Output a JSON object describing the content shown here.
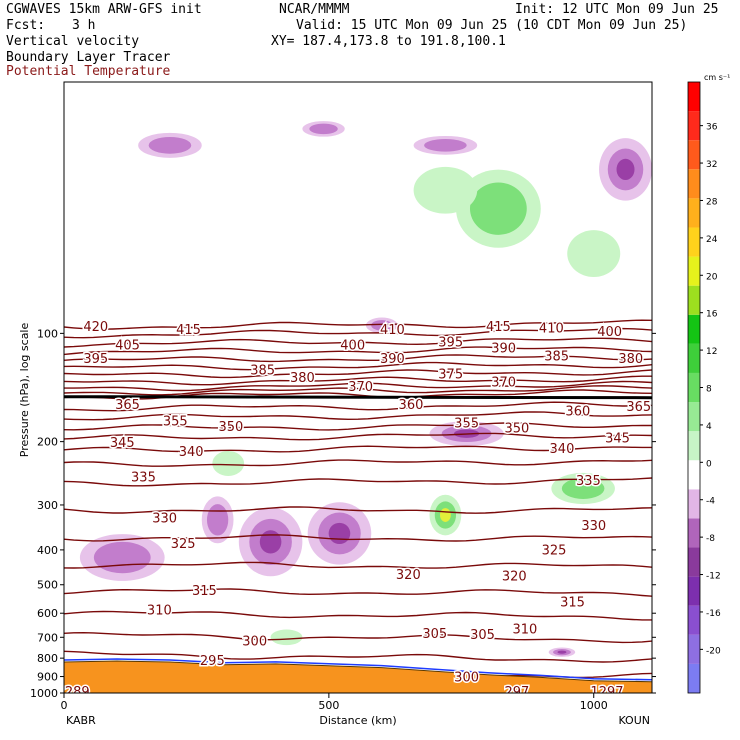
{
  "header": {
    "model": "CGWAVES 15km ARW-GFS init",
    "center": "NCAR/MMMM",
    "init": "Init: 12 UTC Mon 09 Jun 25",
    "fcst_label": "Fcst:",
    "fcst_value": "3 h",
    "valid": "Valid: 15 UTC Mon 09 Jun 25 (10 CDT Mon 09 Jun 25)",
    "field1": "Vertical velocity",
    "xy": "XY= 187.4,173.8 to 191.8,100.1",
    "field2": "Boundary Layer Tracer",
    "field3": "Potential Temperature"
  },
  "colors": {
    "theta_contour": "#7a0a0a",
    "theta_label": "#7a0a0a",
    "terrain": "#f7931e",
    "tracer_line": "#1e3cff",
    "updraft_light": "#c9f5c6",
    "updraft_mid": "#7de07a",
    "downdraft_light": "#e7c3ea",
    "downdraft_mid": "#c27dcc",
    "downdraft_dark": "#9a3fa6"
  },
  "chart_data": {
    "type": "heatmap",
    "title": "Vertical velocity",
    "subtitle": "Boundary Layer Tracer, Potential Temperature",
    "xlabel": "Distance (km)",
    "ylabel": "Pressure (hPa), log scale",
    "x_ticks": [
      0,
      500,
      1000
    ],
    "x_tick_labels": [
      "0",
      "500",
      "1000"
    ],
    "xlim": [
      0,
      1110
    ],
    "y_scale": "log",
    "ylim": [
      1000,
      20
    ],
    "y_ticks": [
      100,
      200,
      300,
      400,
      500,
      600,
      700,
      800,
      900,
      1000
    ],
    "y_tick_labels": [
      "100",
      "200",
      "300",
      "400",
      "500",
      "600",
      "700",
      "800",
      "900",
      "1000"
    ],
    "endpoints": {
      "left": "KABR",
      "right": "KOUN"
    },
    "colorbar": {
      "unit": "cm s⁻¹",
      "levels": [
        -20,
        -16,
        -12,
        -8,
        -4,
        0,
        4,
        8,
        12,
        16,
        20,
        24,
        28,
        32,
        36
      ],
      "labels": [
        "-20",
        "-16",
        "-12",
        "-8",
        "-4",
        "0",
        "4",
        "8",
        "12",
        "16",
        "20",
        "24",
        "28",
        "32",
        "36"
      ],
      "colors": [
        "#7c7cf2",
        "#8e6fe2",
        "#8a4fd0",
        "#7d2fae",
        "#8a3a9c",
        "#b065bb",
        "#e2b6e6",
        "#ffffff",
        "#c7f5c6",
        "#97ea94",
        "#68dd62",
        "#3ecf3a",
        "#14c414",
        "#9ddf1f",
        "#e6f21c",
        "#ffd21c",
        "#ffb01c",
        "#ff8c1c",
        "#ff5a1c",
        "#ff2a1c",
        "#ff0000"
      ]
    },
    "theta_contours": [
      {
        "value": 420,
        "p": 96
      },
      {
        "value": 415,
        "p": 101
      },
      {
        "value": 410,
        "p": 107
      },
      {
        "value": 405,
        "p": 113
      },
      {
        "value": 400,
        "p": 119
      },
      {
        "value": 395,
        "p": 125
      },
      {
        "value": 390,
        "p": 131
      },
      {
        "value": 385,
        "p": 137
      },
      {
        "value": 380,
        "p": 142
      },
      {
        "value": 375,
        "p": 146
      },
      {
        "value": 370,
        "p": 150
      },
      {
        "value": 365,
        "p": 162
      },
      {
        "value": 360,
        "p": 172
      },
      {
        "value": 355,
        "p": 184
      },
      {
        "value": 350,
        "p": 196
      },
      {
        "value": 345,
        "p": 212
      },
      {
        "value": 340,
        "p": 232
      },
      {
        "value": 335,
        "p": 262
      },
      {
        "value": 330,
        "p": 310
      },
      {
        "value": 325,
        "p": 370
      },
      {
        "value": 320,
        "p": 440
      },
      {
        "value": 315,
        "p": 520
      },
      {
        "value": 310,
        "p": 600
      },
      {
        "value": 305,
        "p": 690
      },
      {
        "value": 300,
        "p": 780
      },
      {
        "value": 295,
        "p": 860
      }
    ],
    "theta_labels": [
      {
        "text": "420",
        "x": 60,
        "p": 96
      },
      {
        "text": "415",
        "x": 235,
        "p": 98
      },
      {
        "text": "410",
        "x": 620,
        "p": 98
      },
      {
        "text": "415",
        "x": 820,
        "p": 96
      },
      {
        "text": "410",
        "x": 920,
        "p": 97
      },
      {
        "text": "400",
        "x": 1030,
        "p": 99
      },
      {
        "text": "405",
        "x": 120,
        "p": 108
      },
      {
        "text": "400",
        "x": 545,
        "p": 108
      },
      {
        "text": "395",
        "x": 730,
        "p": 106
      },
      {
        "text": "390",
        "x": 830,
        "p": 110
      },
      {
        "text": "385",
        "x": 930,
        "p": 116
      },
      {
        "text": "380",
        "x": 1070,
        "p": 118
      },
      {
        "text": "395",
        "x": 60,
        "p": 118
      },
      {
        "text": "390",
        "x": 620,
        "p": 118
      },
      {
        "text": "385",
        "x": 375,
        "p": 127
      },
      {
        "text": "380",
        "x": 450,
        "p": 133
      },
      {
        "text": "375",
        "x": 730,
        "p": 130
      },
      {
        "text": "370",
        "x": 560,
        "p": 141
      },
      {
        "text": "370",
        "x": 830,
        "p": 137
      },
      {
        "text": "365",
        "x": 120,
        "p": 158
      },
      {
        "text": "360",
        "x": 655,
        "p": 158
      },
      {
        "text": "360",
        "x": 970,
        "p": 165
      },
      {
        "text": "365",
        "x": 1085,
        "p": 160
      },
      {
        "text": "355",
        "x": 210,
        "p": 176
      },
      {
        "text": "355",
        "x": 760,
        "p": 178
      },
      {
        "text": "350",
        "x": 315,
        "p": 182
      },
      {
        "text": "350",
        "x": 855,
        "p": 184
      },
      {
        "text": "345",
        "x": 110,
        "p": 202
      },
      {
        "text": "345",
        "x": 1045,
        "p": 196
      },
      {
        "text": "340",
        "x": 240,
        "p": 214
      },
      {
        "text": "340",
        "x": 940,
        "p": 210
      },
      {
        "text": "335",
        "x": 150,
        "p": 252
      },
      {
        "text": "335",
        "x": 990,
        "p": 257
      },
      {
        "text": "330",
        "x": 190,
        "p": 327
      },
      {
        "text": "330",
        "x": 1000,
        "p": 343
      },
      {
        "text": "325",
        "x": 225,
        "p": 385
      },
      {
        "text": "325",
        "x": 925,
        "p": 402
      },
      {
        "text": "320",
        "x": 650,
        "p": 470
      },
      {
        "text": "320",
        "x": 850,
        "p": 475
      },
      {
        "text": "315",
        "x": 265,
        "p": 520
      },
      {
        "text": "315",
        "x": 960,
        "p": 560
      },
      {
        "text": "310",
        "x": 180,
        "p": 590
      },
      {
        "text": "310",
        "x": 870,
        "p": 665
      },
      {
        "text": "305",
        "x": 700,
        "p": 685
      },
      {
        "text": "305",
        "x": 790,
        "p": 690
      },
      {
        "text": "300",
        "x": 360,
        "p": 720
      },
      {
        "text": "300",
        "x": 760,
        "p": 905
      },
      {
        "text": "295",
        "x": 280,
        "p": 815
      },
      {
        "text": "289",
        "x": 25,
        "p": 995
      },
      {
        "text": "297",
        "x": 855,
        "p": 995
      },
      {
        "text": "1297",
        "x": 1025,
        "p": 995
      }
    ],
    "surface_pressure": [
      {
        "x": 0,
        "p": 820
      },
      {
        "x": 100,
        "p": 815
      },
      {
        "x": 200,
        "p": 820
      },
      {
        "x": 300,
        "p": 835
      },
      {
        "x": 400,
        "p": 830
      },
      {
        "x": 500,
        "p": 840
      },
      {
        "x": 600,
        "p": 850
      },
      {
        "x": 700,
        "p": 870
      },
      {
        "x": 800,
        "p": 890
      },
      {
        "x": 900,
        "p": 905
      },
      {
        "x": 1000,
        "p": 925
      },
      {
        "x": 1110,
        "p": 930
      }
    ],
    "updraft_regions": [
      {
        "x": 720,
        "p": 320,
        "rx": 30,
        "rp": 0.13,
        "level": 20
      },
      {
        "x": 820,
        "p": 45,
        "rx": 80,
        "rp": 0.25,
        "level": 8
      },
      {
        "x": 720,
        "p": 40,
        "rx": 60,
        "rp": 0.15,
        "level": 4
      },
      {
        "x": 1000,
        "p": 60,
        "rx": 50,
        "rp": 0.15,
        "level": 4
      },
      {
        "x": 310,
        "p": 230,
        "rx": 30,
        "rp": 0.08,
        "level": 4
      },
      {
        "x": 980,
        "p": 270,
        "rx": 60,
        "rp": 0.1,
        "level": 8
      },
      {
        "x": 420,
        "p": 700,
        "rx": 30,
        "rp": 0.05,
        "level": 4
      }
    ],
    "downdraft_regions": [
      {
        "x": 520,
        "p": 360,
        "rx": 60,
        "rp": 0.2,
        "level": -8
      },
      {
        "x": 390,
        "p": 380,
        "rx": 60,
        "rp": 0.22,
        "level": -8
      },
      {
        "x": 110,
        "p": 420,
        "rx": 80,
        "rp": 0.15,
        "level": -4
      },
      {
        "x": 760,
        "p": 190,
        "rx": 70,
        "rp": 0.08,
        "level": -8
      },
      {
        "x": 1060,
        "p": 35,
        "rx": 50,
        "rp": 0.2,
        "level": -8
      },
      {
        "x": 720,
        "p": 30,
        "rx": 60,
        "rp": 0.06,
        "level": -4
      },
      {
        "x": 490,
        "p": 27,
        "rx": 40,
        "rp": 0.05,
        "level": -4
      },
      {
        "x": 290,
        "p": 330,
        "rx": 30,
        "rp": 0.15,
        "level": -4
      },
      {
        "x": 940,
        "p": 770,
        "rx": 25,
        "rp": 0.03,
        "level": -8
      },
      {
        "x": 200,
        "p": 30,
        "rx": 60,
        "rp": 0.08,
        "level": -4
      },
      {
        "x": 600,
        "p": 95,
        "rx": 30,
        "rp": 0.05,
        "level": -4
      }
    ]
  }
}
